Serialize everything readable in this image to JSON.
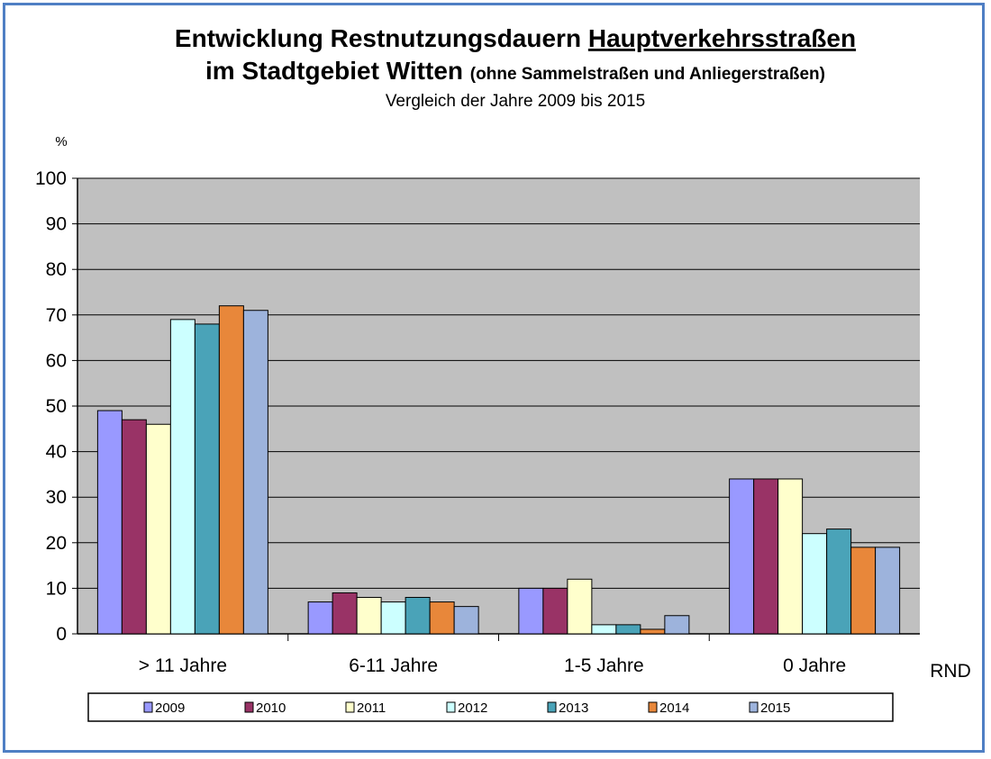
{
  "chart_data": {
    "type": "bar",
    "title_line1_prefix": "Entwicklung Restnutzungsdauern ",
    "title_line1_underlined": "Hauptverkehrsstraßen",
    "title_line2_main": "im Stadtgebiet Witten ",
    "title_line2_paren": "(ohne Sammelstraßen und Anliegerstraßen)",
    "subtitle": "Vergleich der Jahre 2009 bis 2015",
    "ylabel": "%",
    "xlabel": "RND",
    "ylim": [
      0,
      100
    ],
    "yticks": [
      "0",
      "10",
      "20",
      "30",
      "40",
      "50",
      "60",
      "70",
      "80",
      "90",
      "100"
    ],
    "grid": true,
    "legend_position": "bottom",
    "categories": [
      "> 11 Jahre",
      "6-11 Jahre",
      "1-5 Jahre",
      "0 Jahre"
    ],
    "series": [
      {
        "name": "2009",
        "color": "#9999ff",
        "values": [
          49,
          7,
          10,
          34
        ]
      },
      {
        "name": "2010",
        "color": "#993366",
        "values": [
          47,
          9,
          10,
          34
        ]
      },
      {
        "name": "2011",
        "color": "#ffffcc",
        "values": [
          46,
          8,
          12,
          34
        ]
      },
      {
        "name": "2012",
        "color": "#ccffff",
        "values": [
          69,
          7,
          2,
          22
        ]
      },
      {
        "name": "2013",
        "color": "#4aa3b8",
        "values": [
          68,
          8,
          2,
          23
        ]
      },
      {
        "name": "2014",
        "color": "#e8873a",
        "values": [
          72,
          7,
          1,
          19
        ]
      },
      {
        "name": "2015",
        "color": "#9db3dc",
        "values": [
          71,
          6,
          4,
          19
        ]
      }
    ],
    "plot_background": "#c0c0c0"
  }
}
